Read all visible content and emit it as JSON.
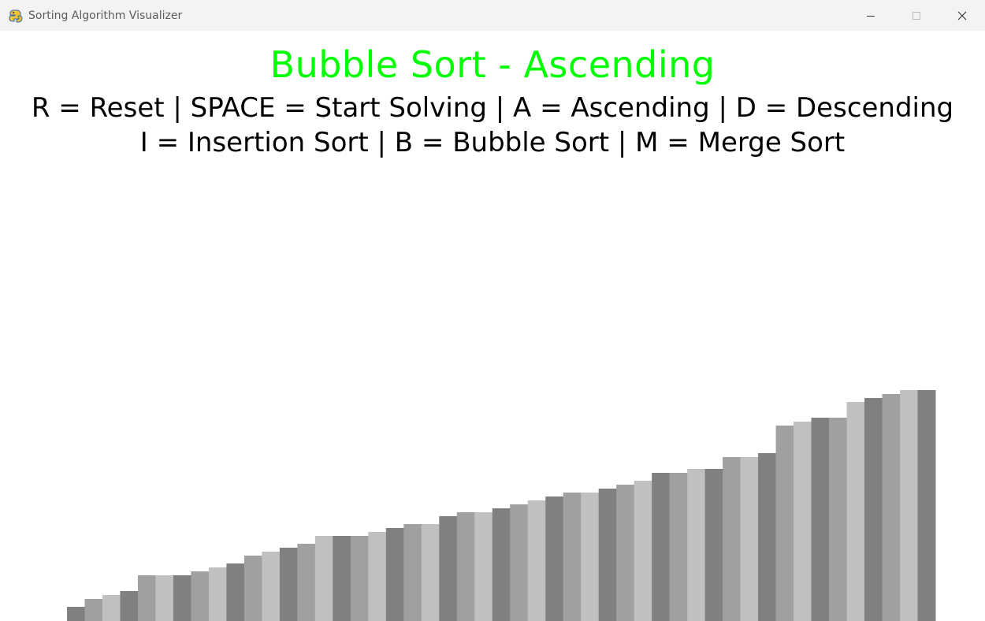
{
  "window": {
    "title": "Sorting Algorithm Visualizer",
    "app_icon": "pygame-snake-icon",
    "controls": [
      "minimize-icon",
      "maximize-icon",
      "close-icon"
    ]
  },
  "header": {
    "title": "Bubble Sort - Ascending",
    "help_line_1": "R = Reset | SPACE = Start Solving | A = Ascending | D = Descending",
    "help_line_2": "I = Insertion Sort | B = Bubble Sort | M = Merge Sort"
  },
  "colors": {
    "title": "#00ff00",
    "text": "#000000",
    "bar_shades": [
      "#808080",
      "#a0a0a0",
      "#c0c0c0"
    ]
  },
  "chart_data": {
    "type": "bar",
    "values": [
      2,
      4,
      5,
      6,
      10,
      10,
      10,
      11,
      12,
      13,
      15,
      16,
      17,
      18,
      20,
      20,
      20,
      21,
      22,
      23,
      23,
      25,
      26,
      26,
      27,
      28,
      29,
      30,
      31,
      31,
      32,
      33,
      34,
      36,
      36,
      37,
      37,
      40,
      40,
      41,
      48,
      49,
      50,
      50,
      54,
      55,
      56,
      57,
      57
    ],
    "ylim": [
      0,
      100
    ]
  }
}
